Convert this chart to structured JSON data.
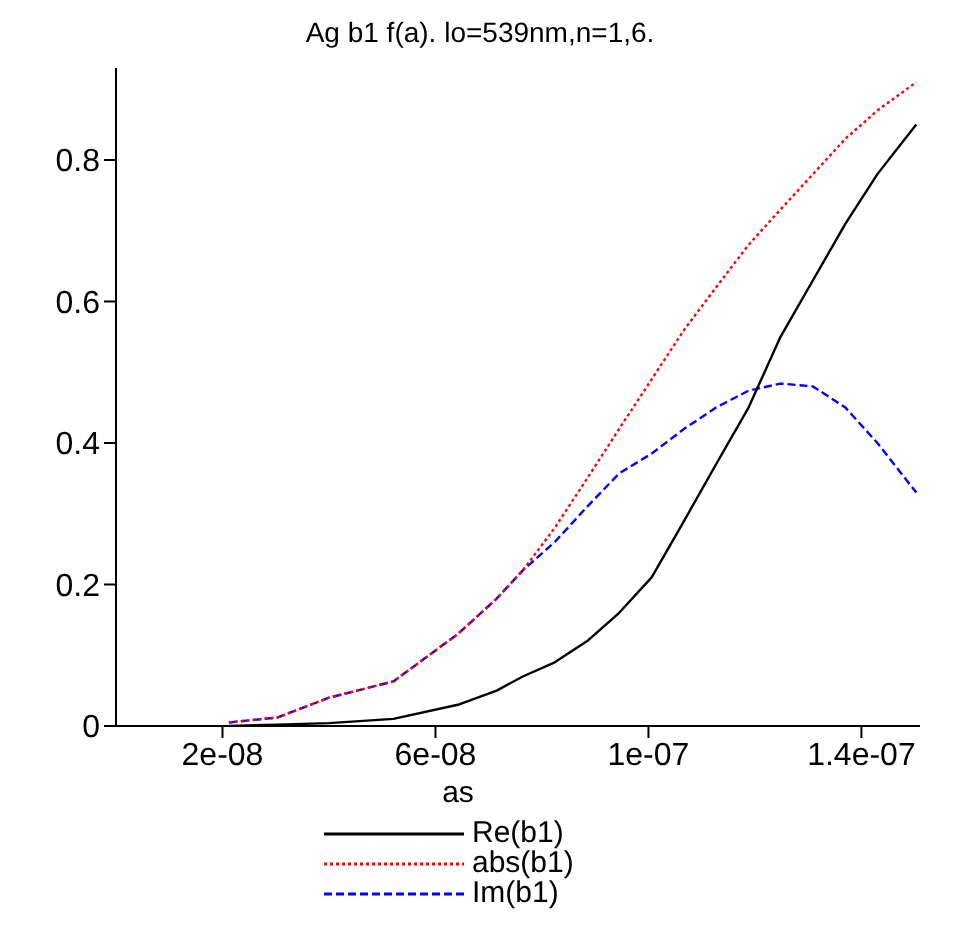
{
  "chart_data": {
    "type": "line",
    "title": "Ag b1 f(a). lo=539nm,n=1,6.",
    "xlabel": "as",
    "x": [
      2.12e-08,
      3.03e-08,
      4e-08,
      5.21e-08,
      6.42e-08,
      7.15e-08,
      7.64e-08,
      8.24e-08,
      8.85e-08,
      9.45e-08,
      1.006e-07,
      1.067e-07,
      1.127e-07,
      1.188e-07,
      1.248e-07,
      1.309e-07,
      1.37e-07,
      1.43e-07,
      1.503e-07
    ],
    "series": [
      {
        "name": "Re(b1)",
        "color": "#000000",
        "line_style": "solid",
        "values": [
          0,
          0.002,
          0.004,
          0.01,
          0.03,
          0.05,
          0.07,
          0.09,
          0.12,
          0.16,
          0.21,
          0.29,
          0.37,
          0.45,
          0.55,
          0.63,
          0.71,
          0.78,
          0.85
        ]
      },
      {
        "name": "abs(b1)",
        "color": "#ff0000",
        "line_style": "dotted",
        "values": [
          0.005,
          0.012,
          0.04,
          0.063,
          0.13,
          0.18,
          0.22,
          0.28,
          0.35,
          0.42,
          0.49,
          0.56,
          0.62,
          0.68,
          0.73,
          0.78,
          0.83,
          0.87,
          0.91
        ]
      },
      {
        "name": "Im(b1)",
        "color": "#0000ff",
        "line_style": "dashed",
        "values": [
          0.005,
          0.012,
          0.04,
          0.063,
          0.13,
          0.18,
          0.22,
          0.26,
          0.31,
          0.357,
          0.385,
          0.42,
          0.45,
          0.474,
          0.484,
          0.48,
          0.45,
          0.4,
          0.33
        ]
      }
    ],
    "xlim": [
      0,
      1.51e-07
    ],
    "xticks": [
      {
        "value": 2e-08,
        "label": "2e-08"
      },
      {
        "value": 6e-08,
        "label": "6e-08"
      },
      {
        "value": 1e-07,
        "label": "1e-07"
      },
      {
        "value": 1.4e-07,
        "label": "1.4e-07"
      }
    ],
    "ylim": [
      0,
      0.93
    ],
    "yticks": [
      0,
      0.2,
      0.4,
      0.6,
      0.8
    ],
    "grid": false,
    "legend": "bottom",
    "marker": "none"
  }
}
